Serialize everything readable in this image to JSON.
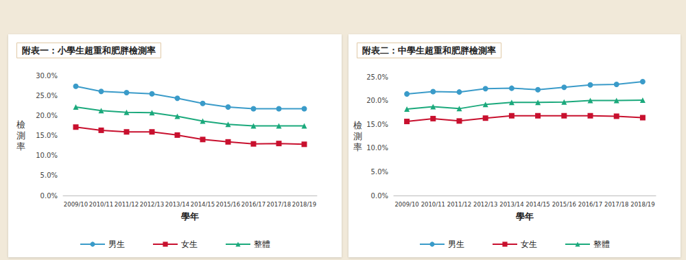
{
  "chart_data": [
    {
      "type": "line",
      "title": "附表一：小學生超重和肥胖檢測率",
      "x_label": "學年",
      "y_label": "檢測率",
      "categories": [
        "2009/10",
        "2010/11",
        "2011/12",
        "2012/13",
        "2013/14",
        "2014/15",
        "2015/16",
        "2016/17",
        "2017/18",
        "2018/19"
      ],
      "series": [
        {
          "name": "男生",
          "color": "#3a9bc9",
          "marker": "circle",
          "line_style": "solid",
          "values": [
            27.3,
            26.0,
            25.7,
            25.4,
            24.3,
            23.0,
            22.1,
            21.7,
            21.7,
            21.7
          ]
        },
        {
          "name": "女生",
          "color": "#c8102e",
          "marker": "square",
          "line_style": "solid",
          "values": [
            17.1,
            16.3,
            15.9,
            15.9,
            15.1,
            14.0,
            13.4,
            12.9,
            13.0,
            12.8
          ]
        },
        {
          "name": "整體",
          "color": "#1ba97c",
          "marker": "triangle",
          "line_style": "solid",
          "values": [
            22.1,
            21.2,
            20.8,
            20.7,
            19.8,
            18.6,
            17.8,
            17.4,
            17.4,
            17.4
          ]
        }
      ],
      "ylim": [
        0,
        30
      ],
      "yticks": [
        {
          "value": 0,
          "label": "0.0%"
        },
        {
          "value": 5,
          "label": "5.0%"
        },
        {
          "value": 10,
          "label": "10.0%"
        },
        {
          "value": 15,
          "label": "15.0%"
        },
        {
          "value": 20,
          "label": "20.0%"
        },
        {
          "value": 25,
          "label": "25.0%"
        },
        {
          "value": 30,
          "label": "30.0%"
        }
      ],
      "grid": false,
      "legend": "bottom"
    },
    {
      "type": "line",
      "title": "附表二：中學生超重和肥胖檢測率",
      "x_label": "學年",
      "y_label": "檢測率",
      "categories": [
        "2009/10",
        "2010/11",
        "2011/12",
        "2012/13",
        "2013/14",
        "2014/15",
        "2015/16",
        "2016/17",
        "2017/18",
        "2018/19"
      ],
      "series": [
        {
          "name": "男生",
          "color": "#3a9bc9",
          "marker": "circle",
          "line_style": "solid",
          "values": [
            21.4,
            21.9,
            21.8,
            22.5,
            22.6,
            22.3,
            22.8,
            23.3,
            23.4,
            24.0
          ]
        },
        {
          "name": "女生",
          "color": "#c8102e",
          "marker": "square",
          "line_style": "solid",
          "values": [
            15.6,
            16.2,
            15.7,
            16.3,
            16.8,
            16.8,
            16.8,
            16.8,
            16.7,
            16.4
          ]
        },
        {
          "name": "整體",
          "color": "#1ba97c",
          "marker": "triangle",
          "line_style": "solid",
          "values": [
            18.2,
            18.7,
            18.3,
            19.2,
            19.6,
            19.6,
            19.7,
            20.0,
            20.0,
            20.1
          ]
        }
      ],
      "ylim": [
        0,
        25
      ],
      "yticks": [
        {
          "value": 0,
          "label": "0.0%"
        },
        {
          "value": 5,
          "label": "5.0%"
        },
        {
          "value": 10,
          "label": "10.0%"
        },
        {
          "value": 15,
          "label": "15.0%"
        },
        {
          "value": 20,
          "label": "20.0%"
        },
        {
          "value": 25,
          "label": "25.0%"
        }
      ],
      "grid": false,
      "legend": "bottom"
    }
  ]
}
